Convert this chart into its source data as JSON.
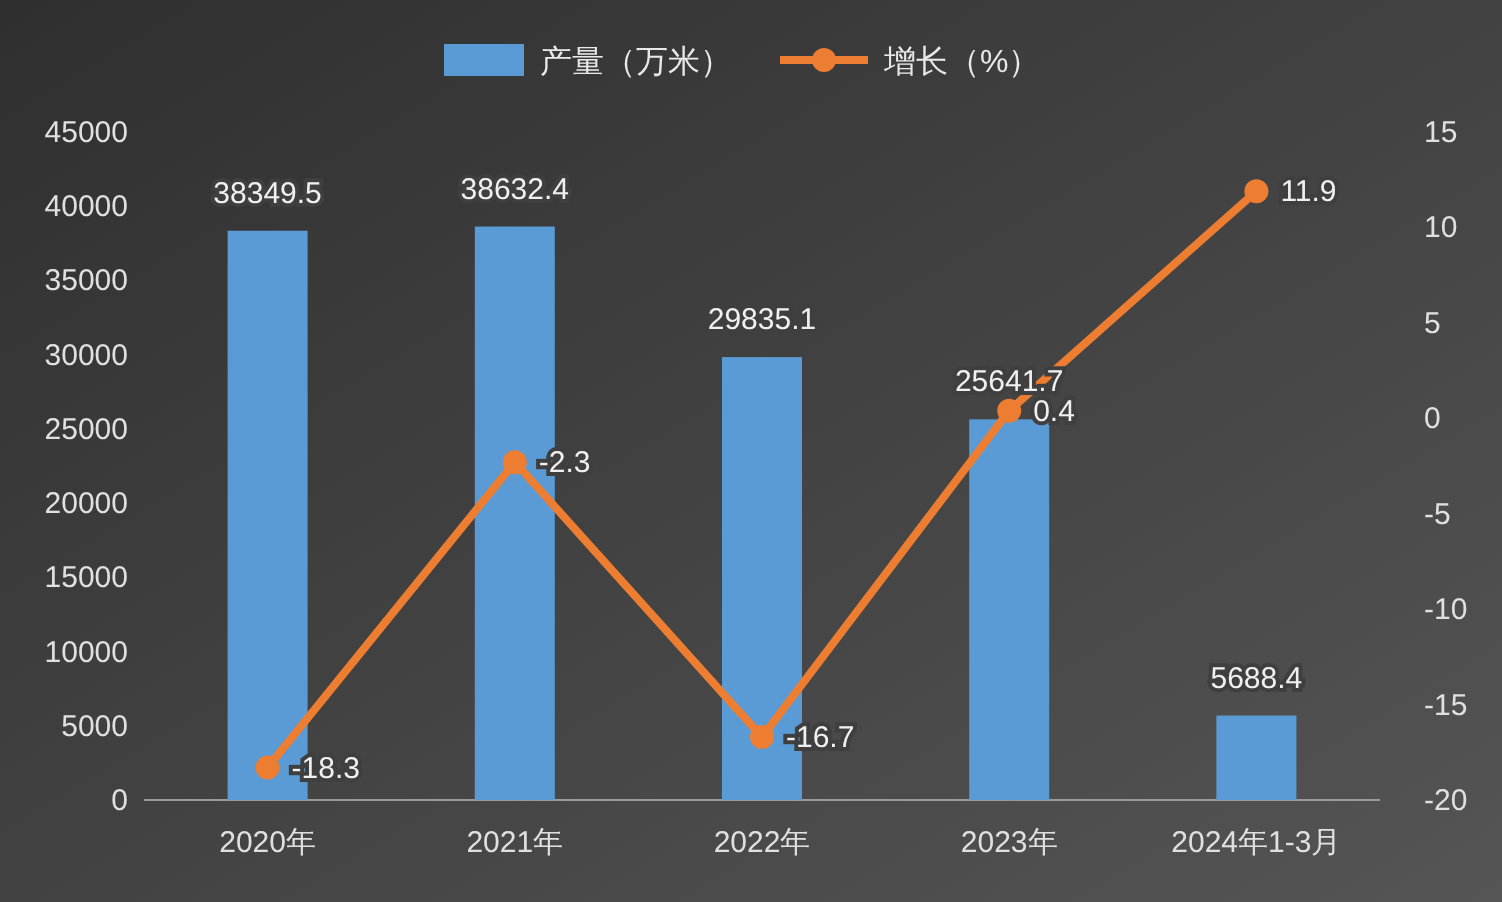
{
  "chart_data": {
    "type": "bar",
    "categories": [
      "2020年",
      "2021年",
      "2022年",
      "2023年",
      "2024年1-3月"
    ],
    "series": [
      {
        "name": "产量（万米）",
        "color": "#5b9bd5",
        "values": [
          38349.5,
          38632.4,
          29835.1,
          25641.7,
          5688.4
        ]
      },
      {
        "name": "增长（%）",
        "type": "line",
        "axis": "y2",
        "color": "#ed7d31",
        "values": [
          -18.3,
          -2.3,
          -16.7,
          0.4,
          11.9
        ]
      }
    ],
    "ylim": [
      0,
      45000
    ],
    "yticks": [
      0,
      5000,
      10000,
      15000,
      20000,
      25000,
      30000,
      35000,
      40000,
      45000
    ],
    "y2lim": [
      -20,
      15
    ],
    "y2ticks": [
      -20,
      -15,
      -10,
      -5,
      0,
      5,
      10,
      15
    ],
    "data_labels": true,
    "legend": "top",
    "grid": false,
    "marker": "circle",
    "line_style": "solid"
  }
}
